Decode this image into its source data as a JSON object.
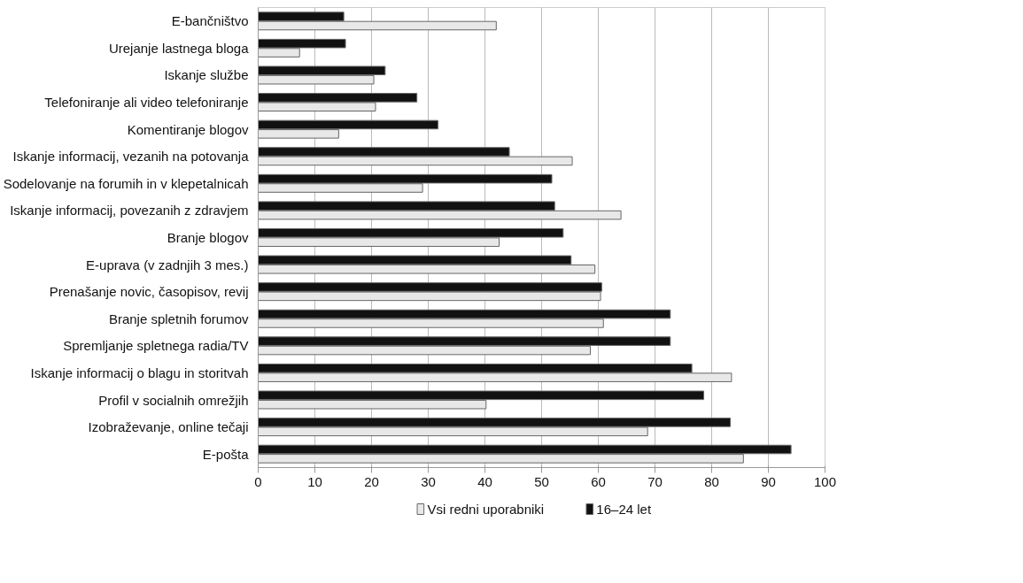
{
  "chart_data": {
    "type": "bar",
    "orientation": "horizontal",
    "categories": [
      "E-bančništvo",
      "Urejanje lastnega bloga",
      "Iskanje službe",
      "Telefoniranje ali video telefoniranje",
      "Komentiranje blogov",
      "Iskanje informacij, vezanih na potovanja",
      "Sodelovanje na forumih in v klepetalnicah",
      "Iskanje informacij, povezanih z zdravjem",
      "Branje blogov",
      "E-uprava (v zadnjih 3 mes.)",
      "Prenašanje novic, časopisov, revij",
      "Branje spletnih forumov",
      "Spremljanje spletnega radia/TV",
      "Iskanje informacij o blagu in storitvah",
      "Profil v socialnih omrežjih",
      "Izobraževanje, online tečaji",
      "E-pošta"
    ],
    "series": [
      {
        "name": "Vsi redni uporabniki",
        "color": "#e8e8e8",
        "values": [
          42.0,
          7.3,
          20.4,
          20.7,
          14.2,
          55.4,
          29.0,
          64.0,
          42.5,
          59.4,
          60.4,
          60.9,
          58.6,
          83.5,
          40.2,
          68.7,
          85.6
        ]
      },
      {
        "name": "16–24 let",
        "color": "#111111",
        "values": [
          15.1,
          15.4,
          22.4,
          28.0,
          31.7,
          44.3,
          51.8,
          52.3,
          53.8,
          55.2,
          60.6,
          72.7,
          72.7,
          76.5,
          78.6,
          83.3,
          94.0
        ]
      }
    ],
    "xlim": [
      0,
      100
    ],
    "xticks": [
      0,
      10,
      20,
      30,
      40,
      50,
      60,
      70,
      80,
      90,
      100
    ],
    "grid": "x",
    "legend": "bottom"
  }
}
